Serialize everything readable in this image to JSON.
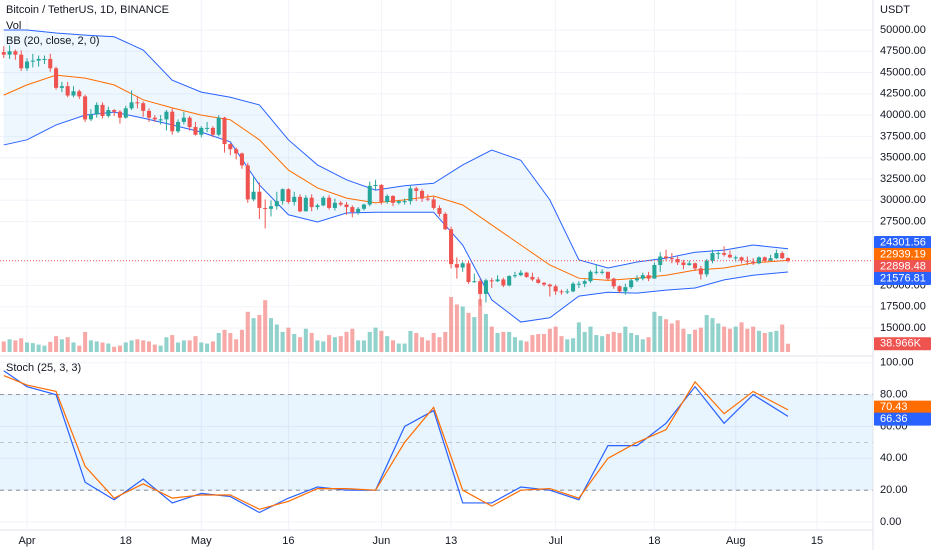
{
  "chart_data": {
    "type": "candlestick",
    "title": "Bitcoin / TetherUS, 1D, BINANCE",
    "axis_unit": "USDT",
    "grid": true,
    "colors": {
      "up": "#26a69a",
      "down": "#ef5350"
    },
    "xlim": [
      -4.65,
      145.63
    ],
    "xticks": [
      {
        "value": 0,
        "label": "Apr"
      },
      {
        "value": 17,
        "label": "18"
      },
      {
        "value": 30,
        "label": "May"
      },
      {
        "value": 45,
        "label": "16"
      },
      {
        "value": 61,
        "label": "Jun"
      },
      {
        "value": 73,
        "label": "13"
      },
      {
        "value": 91,
        "label": "Jul"
      },
      {
        "value": 108,
        "label": "18"
      },
      {
        "value": 122,
        "label": "Aug"
      },
      {
        "value": 136,
        "label": "15"
      }
    ],
    "ylim": [
      11830,
      53520
    ],
    "yticks": [
      {
        "value": 50000,
        "label": "50000.00"
      },
      {
        "value": 47500,
        "label": "47500.00"
      },
      {
        "value": 45000,
        "label": "45000.00"
      },
      {
        "value": 42500,
        "label": "42500.00"
      },
      {
        "value": 40000,
        "label": "40000.00"
      },
      {
        "value": 37500,
        "label": "37500.00"
      },
      {
        "value": 35000,
        "label": "35000.00"
      },
      {
        "value": 32500,
        "label": "32500.00"
      },
      {
        "value": 30000,
        "label": "30000.00"
      },
      {
        "value": 27500,
        "label": "27500.00"
      },
      {
        "value": 20000,
        "label": "20000.00"
      },
      {
        "value": 17500,
        "label": "17500.00"
      },
      {
        "value": 15000,
        "label": "15000.00"
      }
    ],
    "x": [
      -4,
      -3,
      -2,
      -1,
      0,
      1,
      2,
      3,
      4,
      5,
      6,
      7,
      8,
      9,
      10,
      11,
      12,
      13,
      14,
      15,
      16,
      17,
      18,
      19,
      20,
      21,
      22,
      23,
      24,
      25,
      26,
      27,
      28,
      29,
      30,
      31,
      32,
      33,
      34,
      35,
      36,
      37,
      38,
      39,
      40,
      41,
      42,
      43,
      44,
      45,
      46,
      47,
      48,
      49,
      50,
      51,
      52,
      53,
      54,
      55,
      56,
      57,
      58,
      59,
      60,
      61,
      62,
      63,
      64,
      65,
      66,
      67,
      68,
      69,
      70,
      71,
      72,
      73,
      74,
      75,
      76,
      77,
      78,
      79,
      80,
      81,
      82,
      83,
      84,
      85,
      86,
      87,
      88,
      89,
      90,
      91,
      92,
      93,
      94,
      95,
      96,
      97,
      98,
      99,
      100,
      101,
      102,
      103,
      104,
      105,
      106,
      107,
      108,
      109,
      110,
      111,
      112,
      113,
      114,
      115,
      116,
      117,
      118,
      119,
      120,
      121,
      122,
      123,
      124,
      125,
      126,
      127,
      128,
      129,
      130,
      131
    ],
    "open": [
      47400,
      47100,
      47500,
      47100,
      45500,
      46300,
      46400,
      46600,
      46600,
      45500,
      43200,
      43400,
      42300,
      42800,
      42200,
      39500,
      40100,
      41200,
      39900,
      40600,
      40400,
      39700,
      40800,
      41500,
      41400,
      40500,
      39700,
      39500,
      39500,
      40400,
      38100,
      39200,
      39700,
      38600,
      37700,
      38500,
      38500,
      37700,
      39700,
      36600,
      36000,
      35500,
      34100,
      30100,
      31000,
      29100,
      29000,
      29300,
      29900,
      31300,
      29800,
      30400,
      28700,
      30300,
      29200,
      29400,
      30300,
      29100,
      29700,
      29500,
      29200,
      28600,
      29000,
      29500,
      31700,
      31800,
      29800,
      30500,
      29700,
      29900,
      29900,
      31400,
      31100,
      30200,
      30100,
      29100,
      28400,
      26600,
      22500,
      22100,
      22600,
      20400,
      20500,
      19000,
      20600,
      20500,
      20700,
      20000,
      21100,
      21200,
      21500,
      21000,
      20700,
      20300,
      20100,
      19900,
      19300,
      19200,
      19300,
      20200,
      20200,
      20500,
      21600,
      21600,
      21600,
      20800,
      19900,
      19300,
      19800,
      20600,
      20800,
      21200,
      20800,
      22400,
      23400,
      23200,
      23100,
      22700,
      22400,
      22600,
      22000,
      21300,
      22900,
      23800,
      23800,
      23600,
      23300,
      23300,
      22900,
      22800,
      22600,
      23300,
      22900,
      23200,
      23800,
      23200
    ],
    "high": [
      48100,
      48200,
      47700,
      47600,
      46700,
      47200,
      47000,
      47000,
      47200,
      45700,
      43900,
      43900,
      43400,
      43000,
      42400,
      40700,
      41500,
      41500,
      41000,
      40700,
      40600,
      41100,
      42900,
      42200,
      41600,
      40800,
      40000,
      40000,
      40600,
      40800,
      39500,
      40400,
      39900,
      39200,
      38700,
      39200,
      38700,
      40000,
      39800,
      36700,
      36200,
      35600,
      34400,
      32700,
      32100,
      30100,
      30000,
      31000,
      31400,
      31400,
      31000,
      30700,
      30600,
      30700,
      29600,
      30500,
      30600,
      30200,
      29900,
      29800,
      29400,
      29200,
      29600,
      32200,
      32400,
      31900,
      30700,
      30600,
      30000,
      30200,
      31800,
      31600,
      31300,
      30700,
      30400,
      29400,
      28600,
      26900,
      23300,
      22800,
      22900,
      21400,
      20800,
      20800,
      20900,
      21200,
      20900,
      21200,
      21600,
      21800,
      21600,
      21500,
      21000,
      20400,
      20200,
      20100,
      19500,
      19600,
      20400,
      20500,
      20700,
      21800,
      22500,
      21900,
      21600,
      20900,
      20000,
      20200,
      20800,
      21200,
      21500,
      21600,
      22700,
      23900,
      24200,
      23800,
      23400,
      23000,
      22900,
      22700,
      22300,
      23100,
      24200,
      24000,
      24600,
      24100,
      23500,
      23400,
      23400,
      23200,
      23400,
      23400,
      23600,
      24200,
      24000,
      23300
    ],
    "low": [
      46700,
      46600,
      46500,
      45200,
      45200,
      45600,
      45700,
      46000,
      45100,
      43000,
      42700,
      42100,
      42100,
      41900,
      39200,
      39300,
      39700,
      39600,
      39700,
      39900,
      39000,
      39600,
      40600,
      40800,
      39800,
      39200,
      39200,
      38900,
      38200,
      37700,
      37900,
      38900,
      38200,
      37600,
      37400,
      38000,
      37400,
      37500,
      35600,
      35300,
      34800,
      33700,
      29700,
      29900,
      27800,
      26700,
      28100,
      28900,
      29500,
      29600,
      29400,
      28600,
      28700,
      28700,
      28900,
      29300,
      28900,
      28800,
      29300,
      28300,
      28000,
      28300,
      28800,
      29300,
      31200,
      29500,
      29600,
      29300,
      29500,
      29500,
      29500,
      29900,
      29800,
      29900,
      28900,
      28100,
      26500,
      22000,
      20800,
      21600,
      20200,
      20300,
      17600,
      18000,
      19700,
      20400,
      19800,
      19900,
      20900,
      21100,
      20900,
      20500,
      20200,
      19900,
      18700,
      18900,
      18900,
      19000,
      19200,
      19700,
      19800,
      20300,
      21300,
      21300,
      20600,
      19600,
      19100,
      18900,
      19600,
      20400,
      20600,
      20500,
      20800,
      21600,
      22900,
      22600,
      22400,
      21900,
      22300,
      21700,
      20700,
      21000,
      22600,
      23100,
      23400,
      23200,
      22800,
      22600,
      22400,
      22400,
      22500,
      22800,
      22900,
      23100,
      23100,
      22700
    ],
    "close": [
      47100,
      47500,
      47100,
      45500,
      46300,
      46400,
      46600,
      46600,
      45500,
      43200,
      43400,
      42300,
      42800,
      42200,
      39500,
      40100,
      41200,
      39900,
      40600,
      40400,
      39700,
      40800,
      41500,
      41400,
      40500,
      39700,
      39500,
      39500,
      40400,
      38100,
      39200,
      39700,
      38600,
      37700,
      38500,
      38500,
      37700,
      39700,
      36600,
      36000,
      35500,
      34100,
      30100,
      31000,
      29100,
      29000,
      29300,
      29900,
      31300,
      29800,
      30400,
      28700,
      30300,
      29200,
      29400,
      30300,
      29100,
      29700,
      29500,
      29200,
      28600,
      29000,
      29500,
      31700,
      31800,
      29800,
      30500,
      29700,
      29900,
      29900,
      31400,
      31100,
      30200,
      30100,
      29100,
      28400,
      26600,
      22500,
      22100,
      22600,
      20400,
      20500,
      19000,
      20600,
      20500,
      20700,
      20000,
      21100,
      21200,
      21500,
      21000,
      20700,
      20300,
      20100,
      19900,
      19300,
      19200,
      19300,
      20200,
      20200,
      20500,
      21600,
      21600,
      21600,
      20800,
      19900,
      19300,
      19800,
      20600,
      20800,
      21200,
      20800,
      22400,
      23400,
      23200,
      23100,
      22700,
      22400,
      22600,
      22000,
      21300,
      22900,
      23800,
      23800,
      23600,
      23300,
      23300,
      22900,
      22800,
      22600,
      23300,
      22900,
      23200,
      23800,
      23200,
      22898.48
    ],
    "volume": {
      "name": "Vol",
      "values": [
        50000,
        60000,
        55000,
        65000,
        45000,
        42000,
        35000,
        30000,
        48000,
        75000,
        60000,
        70000,
        45000,
        30000,
        95000,
        55000,
        50000,
        45000,
        40000,
        25000,
        30000,
        45000,
        55000,
        60000,
        55000,
        50000,
        35000,
        30000,
        70000,
        80000,
        45000,
        55000,
        55000,
        75000,
        45000,
        40000,
        50000,
        90000,
        105000,
        90000,
        60000,
        105000,
        190000,
        160000,
        175000,
        245000,
        160000,
        130000,
        95000,
        115000,
        85000,
        70000,
        110000,
        90000,
        55000,
        50000,
        80000,
        70000,
        75000,
        95000,
        110000,
        55000,
        55000,
        95000,
        115000,
        100000,
        75000,
        55000,
        40000,
        40000,
        100000,
        90000,
        70000,
        55000,
        90000,
        70000,
        95000,
        260000,
        225000,
        215000,
        185000,
        165000,
        250000,
        180000,
        120000,
        90000,
        95000,
        95000,
        70000,
        55000,
        50000,
        80000,
        85000,
        85000,
        110000,
        120000,
        75000,
        60000,
        65000,
        140000,
        95000,
        120000,
        80000,
        75000,
        85000,
        95000,
        90000,
        120000,
        90000,
        80000,
        60000,
        70000,
        190000,
        170000,
        155000,
        135000,
        150000,
        110000,
        85000,
        105000,
        115000,
        175000,
        160000,
        135000,
        120000,
        110000,
        120000,
        140000,
        110000,
        120000,
        100000,
        90000,
        95000,
        100000,
        130000,
        38966
      ],
      "value_labels": [
        null,
        null,
        null,
        null,
        null,
        null,
        null,
        null,
        null,
        null,
        null,
        null,
        null,
        null,
        null,
        null,
        null,
        null,
        null,
        null,
        null,
        null,
        null,
        null,
        null,
        null,
        null,
        null,
        null,
        null,
        null,
        null,
        null,
        null,
        null,
        null,
        null,
        null,
        null,
        null,
        null,
        null,
        null,
        null,
        null,
        null,
        null,
        null,
        null,
        null,
        null,
        null,
        null,
        null,
        null,
        null,
        null,
        null,
        null,
        null,
        null,
        null,
        null,
        null,
        null,
        null,
        null,
        null,
        null,
        null,
        null,
        null,
        null,
        null,
        null,
        null,
        null,
        null,
        null,
        null,
        null,
        null,
        null,
        null,
        null,
        null,
        null,
        null,
        null,
        null,
        null,
        null,
        null,
        null,
        null,
        null,
        null,
        null,
        null,
        null,
        null,
        null,
        null,
        null,
        null,
        null,
        null,
        null,
        null,
        null,
        null,
        null,
        null,
        null,
        null,
        null,
        null,
        null,
        null,
        null,
        null,
        null,
        null,
        null,
        null,
        null,
        null,
        null,
        null,
        null,
        null,
        null,
        null,
        null,
        null,
        "38.966K"
      ]
    },
    "bb": {
      "name": "BB (20, close, 2, 0)",
      "colors": {
        "upper": "#2962ff",
        "basis": "#ff6d00",
        "lower": "#2962ff"
      },
      "x": [
        -4,
        0,
        5,
        10,
        15,
        20,
        25,
        30,
        35,
        40,
        45,
        50,
        55,
        60,
        65,
        70,
        75,
        80,
        85,
        90,
        95,
        100,
        105,
        110,
        115,
        120,
        125,
        131
      ],
      "upper": [
        50000,
        50000,
        49650,
        49400,
        49200,
        47650,
        44100,
        42700,
        42100,
        41200,
        37100,
        34150,
        32400,
        31200,
        31700,
        32000,
        34150,
        35900,
        34700,
        30050,
        23000,
        22050,
        22750,
        23200,
        23900,
        24150,
        24750,
        24301.56
      ],
      "basis": [
        42350,
        43550,
        44700,
        44350,
        43550,
        41800,
        40850,
        40000,
        39450,
        37100,
        33550,
        31450,
        30250,
        29700,
        30050,
        30500,
        29450,
        27100,
        24750,
        22400,
        20850,
        20600,
        20850,
        21200,
        21800,
        22050,
        22650,
        22939.19
      ],
      "lower": [
        36500,
        37100,
        38850,
        40000,
        40350,
        39650,
        38850,
        38000,
        36850,
        31800,
        28300,
        27450,
        28500,
        28600,
        28600,
        28600,
        24750,
        18300,
        15700,
        16200,
        18750,
        19200,
        19100,
        19450,
        19700,
        20650,
        21200,
        21576.81
      ]
    },
    "stoch": {
      "name": "Stoch (25, 3, 3)",
      "colors": {
        "k": "#2962ff",
        "d": "#ff6d00"
      },
      "ylim": [
        -5,
        103
      ],
      "yticks": [
        {
          "value": 0,
          "label": "0.00"
        },
        {
          "value": 20,
          "label": "20.00"
        },
        {
          "value": 40,
          "label": "40.00"
        },
        {
          "value": 60,
          "label": "60.00"
        },
        {
          "value": 80,
          "label": "80.00"
        },
        {
          "value": 100,
          "label": "100.00"
        }
      ],
      "band": [
        20,
        80
      ],
      "midline": 50,
      "x": [
        -4,
        0,
        5,
        10,
        15,
        20,
        25,
        30,
        35,
        40,
        45,
        50,
        55,
        60,
        65,
        70,
        75,
        80,
        85,
        90,
        95,
        100,
        105,
        110,
        115,
        120,
        125,
        131
      ],
      "k": [
        95,
        85,
        80,
        25,
        14,
        27,
        12,
        18,
        16,
        6,
        15,
        22,
        20,
        20,
        60,
        70,
        12,
        12,
        22,
        20,
        14,
        48,
        48,
        62,
        85,
        62,
        80,
        66.36
      ],
      "d": [
        92,
        86,
        82,
        35,
        15,
        24,
        15,
        17,
        17,
        8,
        13,
        21,
        21,
        20,
        50,
        72,
        20,
        10,
        20,
        21,
        15,
        40,
        50,
        58,
        88,
        68,
        82,
        70.43
      ]
    }
  }
}
